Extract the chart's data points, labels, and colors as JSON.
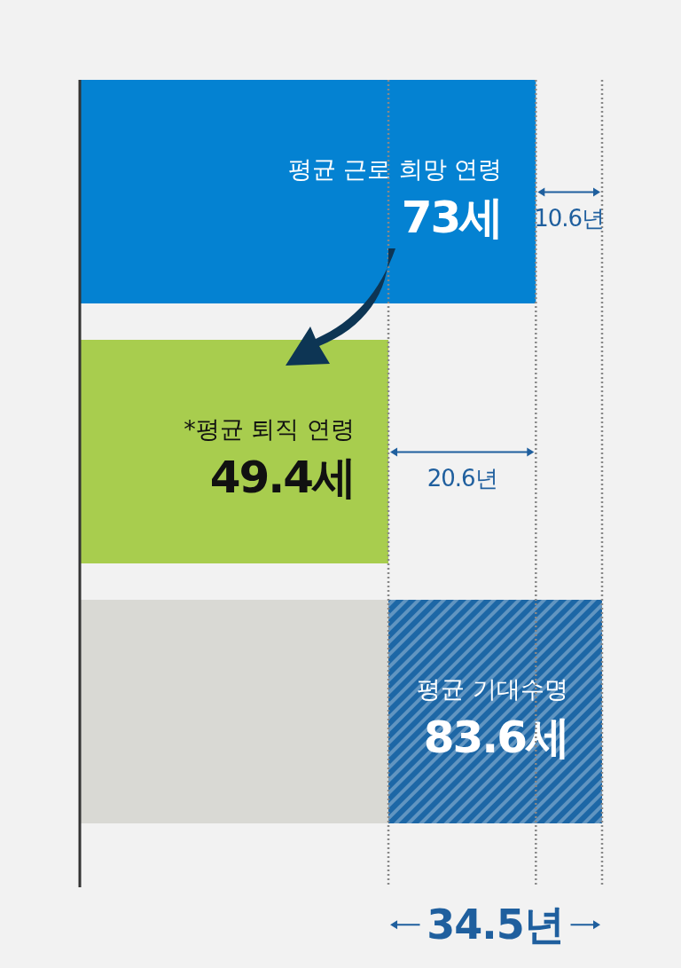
{
  "chart_data": {
    "type": "bar",
    "orientation": "horizontal",
    "stacked": true,
    "categories": [
      "평균 근로 희망 연령",
      "*평균 퇴직 연령",
      "평균 기대수명"
    ],
    "series": [
      {
        "colors": [
          "#0482d2",
          "#a8cd4e",
          "#d9d9d4"
        ],
        "values": [
          73,
          49.4,
          49.4
        ],
        "value_labels": [
          "73세",
          "49.4세",
          null
        ]
      },
      {
        "color": "#1d67a6",
        "values": [
          null,
          null,
          34.2
        ]
      }
    ],
    "totals": [
      null,
      null,
      "83.6세"
    ],
    "ref_lines": [
      {
        "axis": "x",
        "value": 49.4,
        "line_style": "dotted",
        "color": "#888888"
      },
      {
        "axis": "x",
        "value": 73,
        "line_style": "dotted",
        "color": "#888888"
      },
      {
        "axis": "x",
        "value": 83.6,
        "line_style": "dotted",
        "color": "#888888"
      }
    ],
    "annotations": [
      "10.6년",
      "20.6년",
      "34.5년"
    ]
  }
}
